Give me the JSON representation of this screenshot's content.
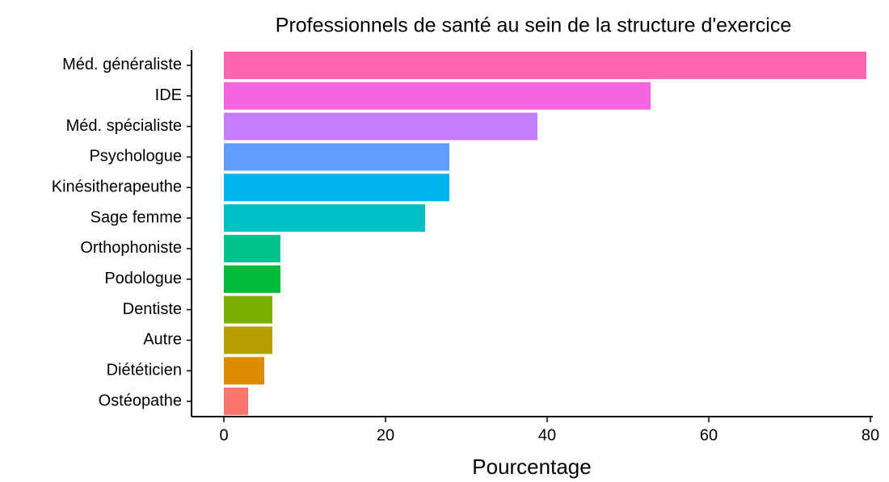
{
  "chart_data": {
    "type": "barh",
    "title": "Professionnels de santé au sein de la structure d'exercice",
    "x_label": "Pourcentage",
    "categories": [
      "Méd. généraliste",
      "IDE",
      "Méd. spécialiste",
      "Psychologue",
      "Kinésitherapeuthe",
      "Sage femme",
      "Orthophoniste",
      "Podologue",
      "Dentiste",
      "Autre",
      "Diététicien",
      "Ostéopathe"
    ],
    "values": [
      79.5,
      52.8,
      38.8,
      27.9,
      27.9,
      24.9,
      7.0,
      7.0,
      6.0,
      6.0,
      5.0,
      3.0
    ],
    "colors": [
      "#FF64B0",
      "#F564E3",
      "#C77CFF",
      "#619CFF",
      "#00B4F0",
      "#00BFC4",
      "#00C08B",
      "#00BA38",
      "#7CAE00",
      "#B79F00",
      "#DE8C00",
      "#F8766D"
    ],
    "xlim": [
      -4,
      80.3
    ],
    "xticks": [
      0,
      20,
      40,
      60,
      80
    ]
  }
}
